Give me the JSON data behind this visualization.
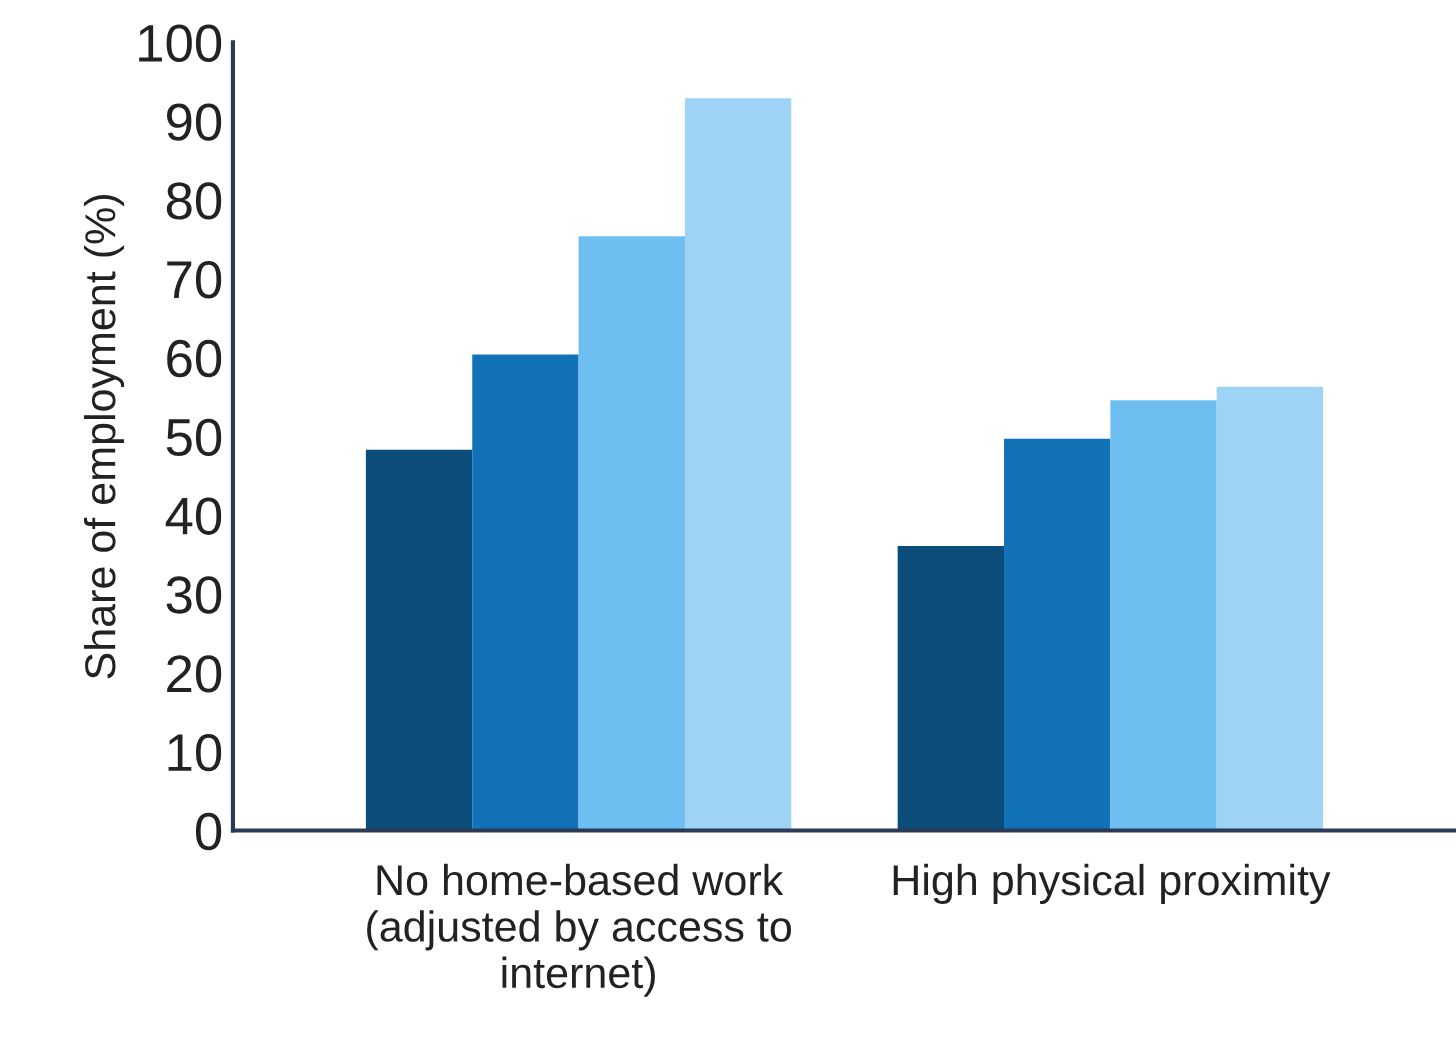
{
  "chart_data": {
    "type": "bar",
    "ylabel": "Share of employment (%)",
    "categories": [
      "No home-based work\n(adjusted by access to\ninternet)",
      "High physical proximity"
    ],
    "series": [
      {
        "color": "#0b4d7a",
        "values": [
          48.3,
          36.1
        ]
      },
      {
        "color": "#1172b8",
        "values": [
          60.4,
          49.7
        ]
      },
      {
        "color": "#6ebef2",
        "values": [
          75.4,
          54.6
        ]
      },
      {
        "color": "#9fd3f6",
        "values": [
          92.9,
          56.3
        ]
      }
    ],
    "ylim": [
      0,
      100
    ],
    "yticks": [
      0,
      10,
      20,
      30,
      40,
      50,
      60,
      70,
      80,
      90,
      100
    ],
    "grid": false,
    "legend": false
  }
}
